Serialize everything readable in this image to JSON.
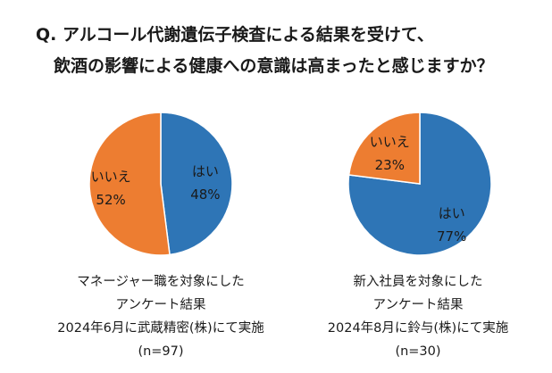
{
  "title": {
    "line1": "Q. アルコール代謝遺伝子検査による結果を受けて、",
    "line2": "飲酒の影響による健康への意識は高まったと感じますか？"
  },
  "chart_data": [
    {
      "type": "pie",
      "categories": [
        "はい",
        "いいえ"
      ],
      "values": [
        48,
        52
      ],
      "value_labels": [
        "48%",
        "52%"
      ],
      "colors": [
        "#2e75b6",
        "#ed7d31"
      ],
      "caption": {
        "line1": "マネージャー職を対象にした",
        "line2": "アンケート結果",
        "line3": "2024年6月に武蔵精密(株)にて実施",
        "n": "(n=97)"
      }
    },
    {
      "type": "pie",
      "categories": [
        "はい",
        "いいえ"
      ],
      "values": [
        77,
        23
      ],
      "value_labels": [
        "77%",
        "23%"
      ],
      "colors": [
        "#2e75b6",
        "#ed7d31"
      ],
      "caption": {
        "line1": "新入社員を対象にした",
        "line2": "アンケート結果",
        "line3": "2024年8月に鈴与(株)にて実施",
        "n": "(n=30)"
      }
    }
  ]
}
